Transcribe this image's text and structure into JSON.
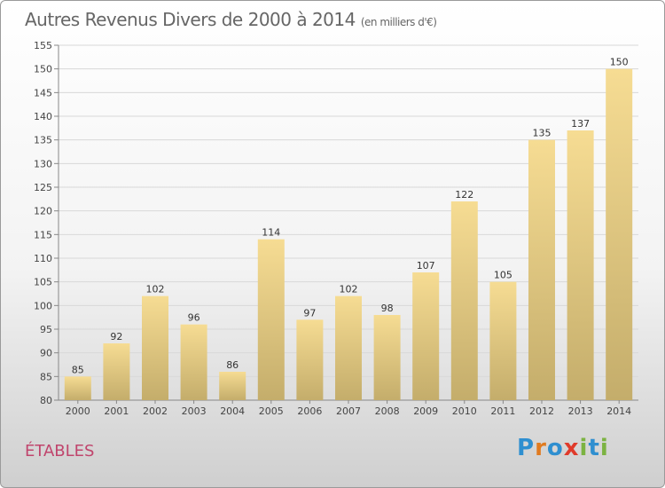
{
  "title_main": "Autres Revenus Divers de 2000 à 2014",
  "title_unit": "(en milliers d'€)",
  "city": "ÉTABLES",
  "logo": {
    "letters": [
      "P",
      "r",
      "o",
      "x",
      "i",
      "t",
      "i"
    ],
    "colors": [
      "#2f8fd0",
      "#e07b20",
      "#2f8fd0",
      "#e03b2b",
      "#7cb342",
      "#2f8fd0",
      "#7cb342"
    ]
  },
  "colors": {
    "bar_top": "#f6dc93",
    "bar_bottom": "#c4ad6b",
    "grid": "#d8d8d8"
  },
  "chart_data": {
    "type": "bar",
    "categories": [
      "2000",
      "2001",
      "2002",
      "2003",
      "2004",
      "2005",
      "2006",
      "2007",
      "2008",
      "2009",
      "2010",
      "2011",
      "2012",
      "2013",
      "2014"
    ],
    "values": [
      85,
      92,
      102,
      96,
      86,
      114,
      97,
      102,
      98,
      107,
      122,
      105,
      135,
      137,
      150
    ],
    "title": "Autres Revenus Divers de 2000 à 2014",
    "ylim": [
      80,
      155
    ],
    "yticks": [
      80,
      85,
      90,
      95,
      100,
      105,
      110,
      115,
      120,
      125,
      130,
      135,
      140,
      145,
      150,
      155
    ],
    "grid": true
  }
}
